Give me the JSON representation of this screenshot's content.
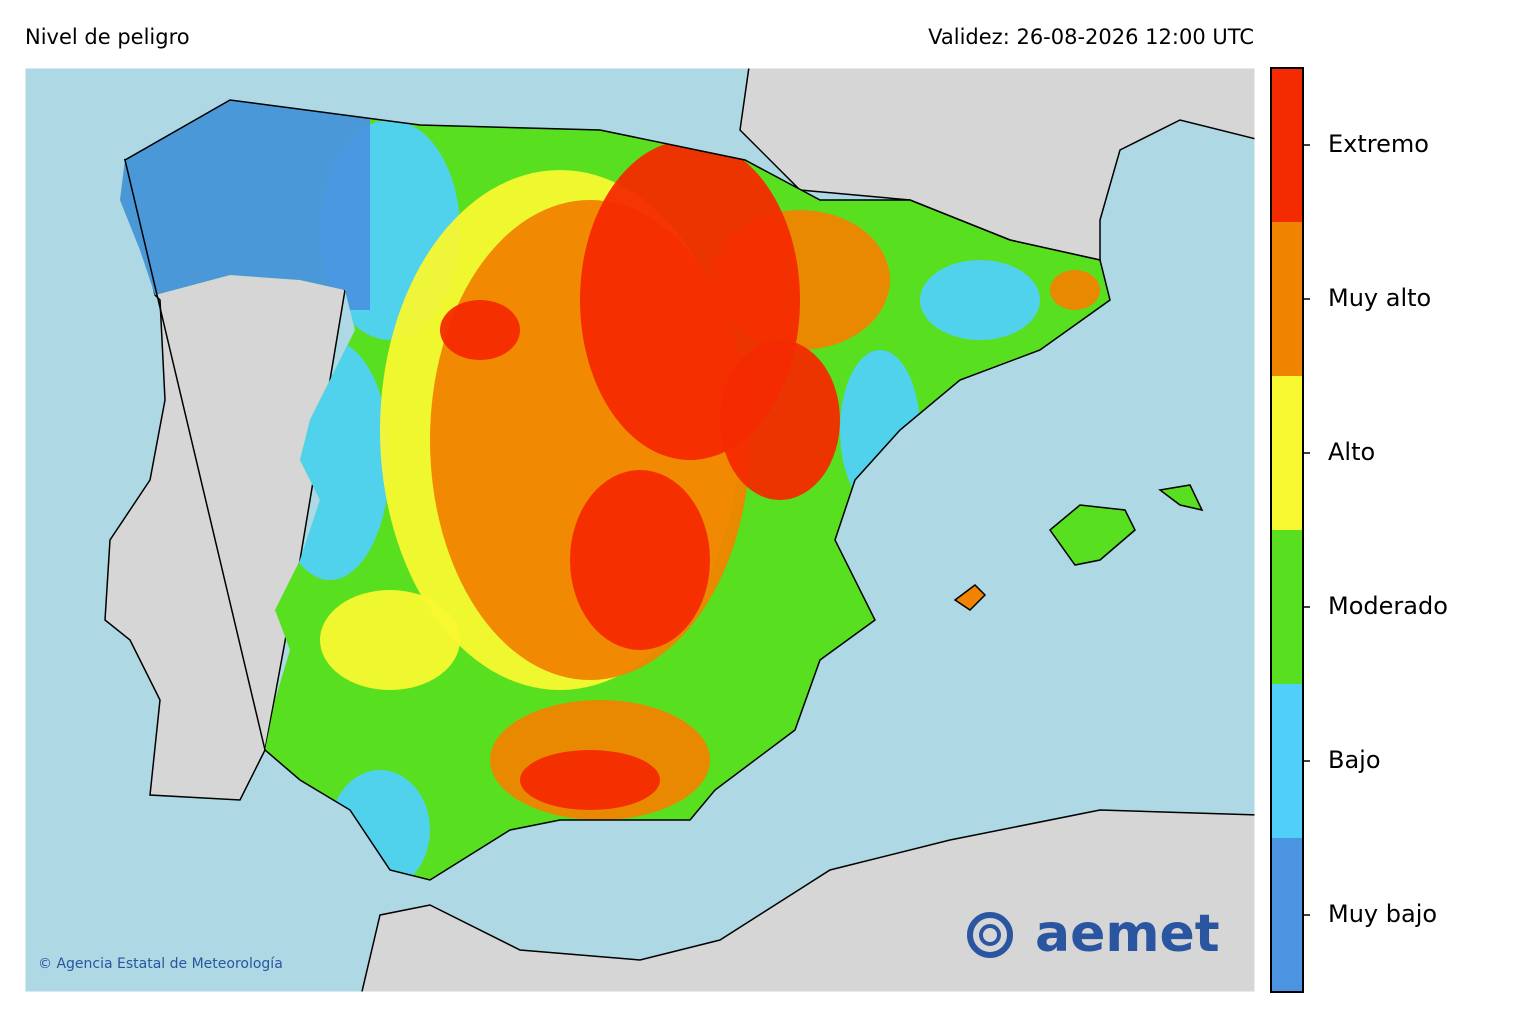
{
  "header": {
    "title": "Nivel de peligro",
    "validity": "Validez: 26-08-2026 12:00 UTC"
  },
  "legend": {
    "levels": [
      {
        "label": "Muy bajo",
        "color": "#4a94e2"
      },
      {
        "label": "Bajo",
        "color": "#50d0f8"
      },
      {
        "label": "Moderado",
        "color": "#58e020"
      },
      {
        "label": "Alto",
        "color": "#f8f830"
      },
      {
        "label": "Muy alto",
        "color": "#f08400"
      },
      {
        "label": "Extremo",
        "color": "#f42a00"
      }
    ]
  },
  "footer": {
    "copyright": "© Agencia Estatal de Meteorología",
    "logo": "aemet"
  }
}
